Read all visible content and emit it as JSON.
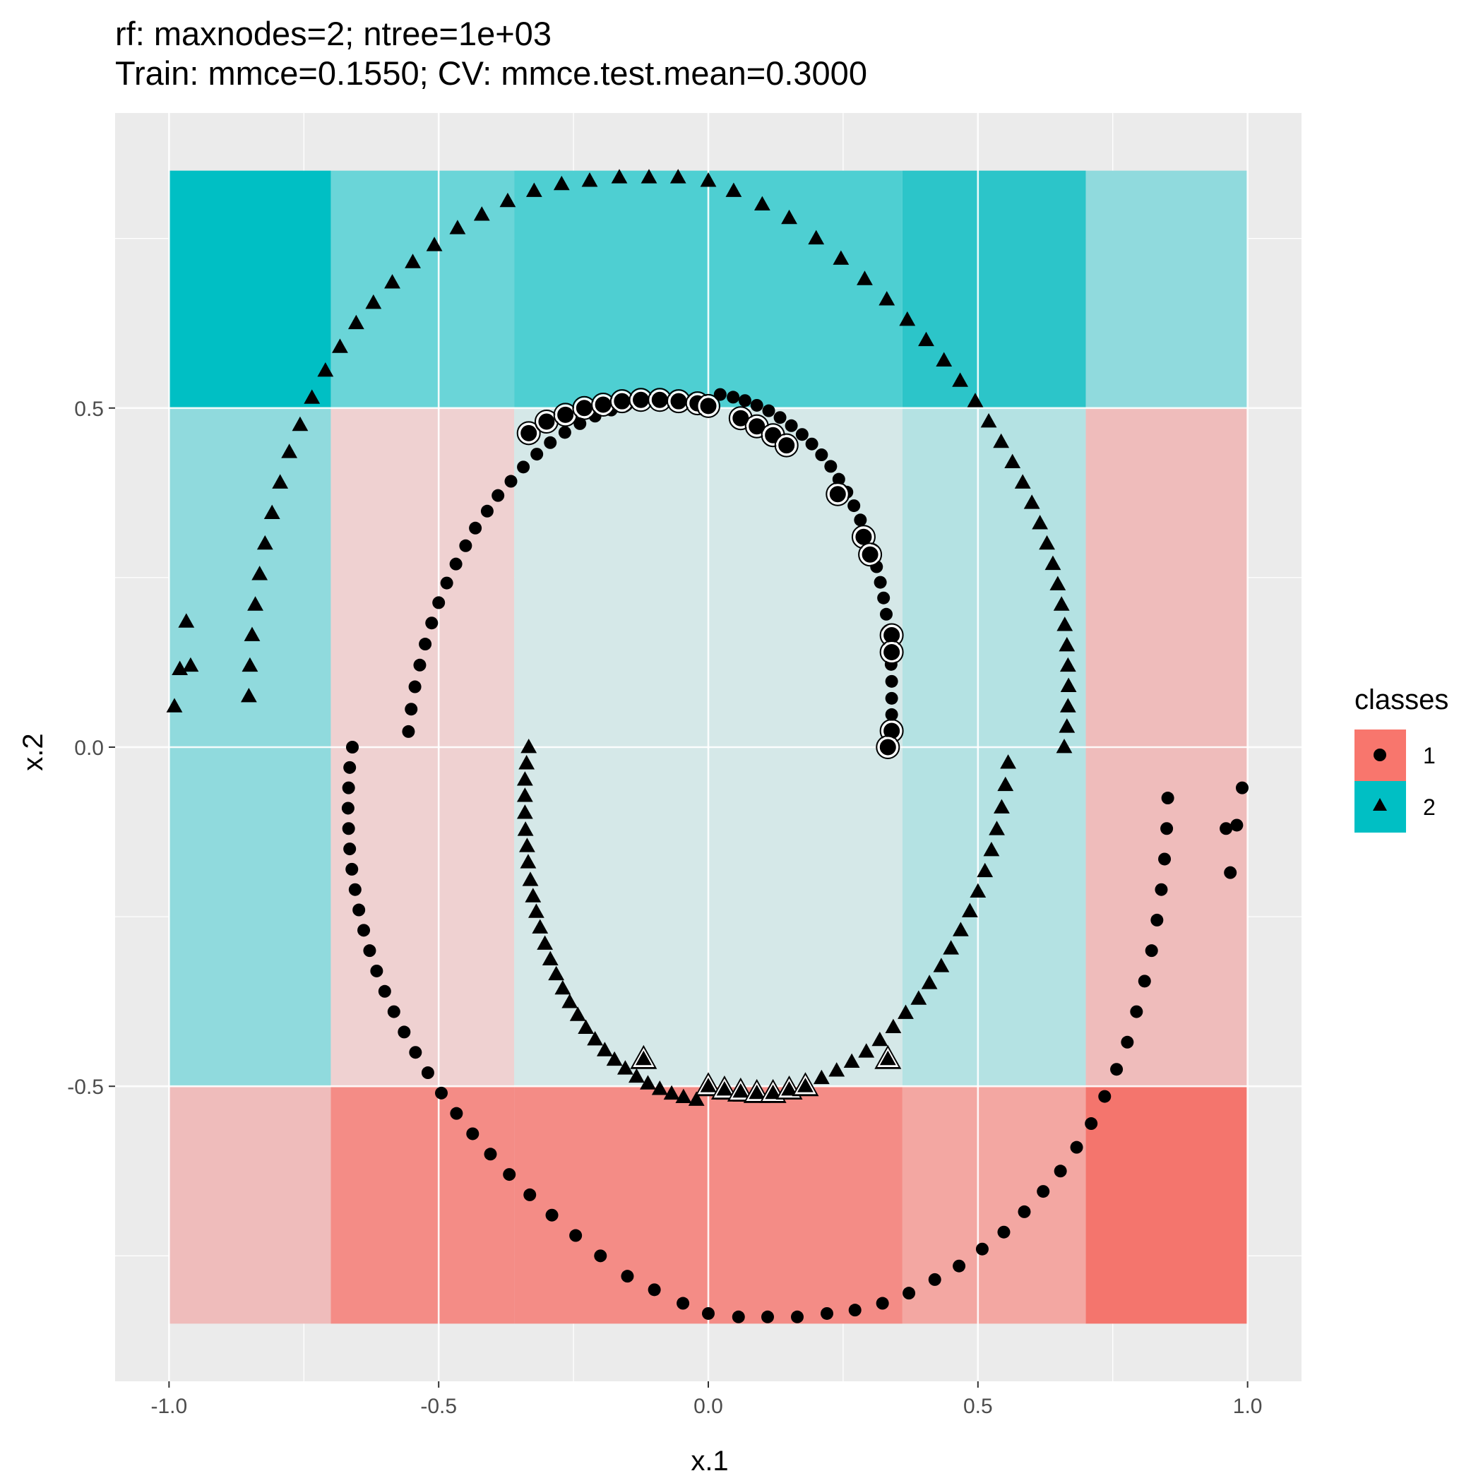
{
  "chart_data": {
    "type": "scatter",
    "title": "rf: maxnodes=2; ntree=1e+03",
    "subtitle": "Train: mmce=0.1550; CV: mmce.test.mean=0.3000",
    "xlabel": "x.1",
    "ylabel": "x.2",
    "xlim": [
      -1.1,
      1.1
    ],
    "ylim": [
      -0.935,
      0.935
    ],
    "x_ticks": [
      -1.0,
      -0.5,
      0.0,
      0.5,
      1.0
    ],
    "x_tick_labels": [
      "-1.0",
      "-0.5",
      "0.0",
      "0.5",
      "1.0"
    ],
    "y_ticks": [
      -0.5,
      0.0,
      0.5
    ],
    "y_tick_labels": [
      "-0.5",
      "0.0",
      "0.5"
    ],
    "grid": true,
    "legend": {
      "title": "classes",
      "position": "right",
      "entries": [
        {
          "label": "1",
          "color": "#F8766D",
          "shape": "circle"
        },
        {
          "label": "2",
          "color": "#00BFC4",
          "shape": "triangle"
        }
      ]
    },
    "background_regions": {
      "x_breaks": [
        -1.0,
        -0.7,
        -0.36,
        0.36,
        0.7,
        1.0
      ],
      "y_breaks": [
        -0.85,
        -0.5,
        0.5,
        0.85
      ],
      "rows_bottom_to_top": [
        [
          "#EFBCBB",
          "#F48C86",
          "#F48C86",
          "#F3A7A2",
          "#F4756D"
        ],
        [
          "#90DADD",
          "#EFD1D1",
          "#D5E8E8",
          "#B4E2E3",
          "#EFBCBB"
        ],
        [
          "#00BFC4",
          "#6AD5D8",
          "#4ECFD2",
          "#2CC5C9",
          "#90DADD"
        ]
      ]
    },
    "series": [
      {
        "name": "1",
        "marker": "circle",
        "color": "#000000",
        "points": [
          [
            0.333,
            0.0
          ],
          [
            0.337,
            0.024
          ],
          [
            0.34,
            0.048
          ],
          [
            0.34,
            0.072
          ],
          [
            0.34,
            0.097
          ],
          [
            0.339,
            0.122
          ],
          [
            0.336,
            0.146
          ],
          [
            0.334,
            0.17
          ],
          [
            0.33,
            0.196
          ],
          [
            0.325,
            0.22
          ],
          [
            0.319,
            0.243
          ],
          [
            0.312,
            0.266
          ],
          [
            0.303,
            0.29
          ],
          [
            0.293,
            0.313
          ],
          [
            0.282,
            0.335
          ],
          [
            0.27,
            0.356
          ],
          [
            0.257,
            0.376
          ],
          [
            0.242,
            0.395
          ],
          [
            0.227,
            0.414
          ],
          [
            0.21,
            0.431
          ],
          [
            0.192,
            0.447
          ],
          [
            0.174,
            0.461
          ],
          [
            0.154,
            0.474
          ],
          [
            0.133,
            0.486
          ],
          [
            0.112,
            0.496
          ],
          [
            0.09,
            0.504
          ],
          [
            0.068,
            0.511
          ],
          [
            0.046,
            0.516
          ],
          [
            0.022,
            0.52
          ],
          [
            0.0,
            0.503
          ],
          [
            -0.029,
            0.511
          ],
          [
            -0.06,
            0.514
          ],
          [
            -0.09,
            0.513
          ],
          [
            -0.12,
            0.51
          ],
          [
            -0.151,
            0.505
          ],
          [
            -0.18,
            0.497
          ],
          [
            -0.21,
            0.488
          ],
          [
            -0.238,
            0.477
          ],
          [
            -0.266,
            0.464
          ],
          [
            -0.293,
            0.449
          ],
          [
            -0.318,
            0.432
          ],
          [
            -0.343,
            0.413
          ],
          [
            -0.366,
            0.392
          ],
          [
            -0.39,
            0.371
          ],
          [
            -0.41,
            0.348
          ],
          [
            -0.432,
            0.323
          ],
          [
            -0.45,
            0.297
          ],
          [
            -0.468,
            0.27
          ],
          [
            -0.485,
            0.242
          ],
          [
            -0.5,
            0.213
          ],
          [
            -0.513,
            0.183
          ],
          [
            -0.525,
            0.152
          ],
          [
            -0.535,
            0.121
          ],
          [
            -0.544,
            0.089
          ],
          [
            -0.551,
            0.056
          ],
          [
            -0.556,
            0.023
          ],
          [
            -0.66,
            0.0
          ],
          [
            -0.665,
            -0.03
          ],
          [
            -0.667,
            -0.06
          ],
          [
            -0.668,
            -0.09
          ],
          [
            -0.667,
            -0.12
          ],
          [
            -0.665,
            -0.15
          ],
          [
            -0.661,
            -0.18
          ],
          [
            -0.655,
            -0.21
          ],
          [
            -0.648,
            -0.24
          ],
          [
            -0.639,
            -0.27
          ],
          [
            -0.628,
            -0.3
          ],
          [
            -0.615,
            -0.33
          ],
          [
            -0.6,
            -0.36
          ],
          [
            -0.583,
            -0.39
          ],
          [
            -0.564,
            -0.42
          ],
          [
            -0.543,
            -0.45
          ],
          [
            -0.52,
            -0.48
          ],
          [
            -0.495,
            -0.51
          ],
          [
            -0.467,
            -0.54
          ],
          [
            -0.437,
            -0.57
          ],
          [
            -0.404,
            -0.6
          ],
          [
            -0.369,
            -0.63
          ],
          [
            -0.331,
            -0.66
          ],
          [
            -0.29,
            -0.69
          ],
          [
            -0.246,
            -0.72
          ],
          [
            -0.2,
            -0.75
          ],
          [
            -0.15,
            -0.78
          ],
          [
            -0.1,
            -0.8
          ],
          [
            -0.047,
            -0.82
          ],
          [
            0.0,
            -0.835
          ],
          [
            0.056,
            -0.84
          ],
          [
            0.11,
            -0.84
          ],
          [
            0.165,
            -0.84
          ],
          [
            0.22,
            -0.835
          ],
          [
            0.272,
            -0.83
          ],
          [
            0.323,
            -0.82
          ],
          [
            0.372,
            -0.805
          ],
          [
            0.42,
            -0.785
          ],
          [
            0.465,
            -0.765
          ],
          [
            0.508,
            -0.74
          ],
          [
            0.548,
            -0.715
          ],
          [
            0.586,
            -0.685
          ],
          [
            0.621,
            -0.655
          ],
          [
            0.653,
            -0.625
          ],
          [
            0.683,
            -0.59
          ],
          [
            0.71,
            -0.555
          ],
          [
            0.735,
            -0.515
          ],
          [
            0.757,
            -0.475
          ],
          [
            0.777,
            -0.435
          ],
          [
            0.794,
            -0.39
          ],
          [
            0.809,
            -0.345
          ],
          [
            0.822,
            -0.3
          ],
          [
            0.832,
            -0.255
          ],
          [
            0.84,
            -0.21
          ],
          [
            0.846,
            -0.165
          ],
          [
            0.85,
            -0.12
          ],
          [
            0.852,
            -0.075
          ],
          [
            0.96,
            -0.12
          ],
          [
            0.968,
            -0.185
          ],
          [
            0.98,
            -0.115
          ],
          [
            0.99,
            -0.06
          ]
        ]
      },
      {
        "name": "2",
        "marker": "triangle",
        "color": "#000000",
        "points": [
          [
            -0.333,
            0.0
          ],
          [
            -0.337,
            -0.024
          ],
          [
            -0.34,
            -0.048
          ],
          [
            -0.34,
            -0.072
          ],
          [
            -0.34,
            -0.097
          ],
          [
            -0.339,
            -0.122
          ],
          [
            -0.336,
            -0.146
          ],
          [
            -0.334,
            -0.17
          ],
          [
            -0.33,
            -0.196
          ],
          [
            -0.325,
            -0.22
          ],
          [
            -0.319,
            -0.243
          ],
          [
            -0.312,
            -0.266
          ],
          [
            -0.303,
            -0.29
          ],
          [
            -0.293,
            -0.313
          ],
          [
            -0.282,
            -0.335
          ],
          [
            -0.27,
            -0.356
          ],
          [
            -0.257,
            -0.376
          ],
          [
            -0.242,
            -0.395
          ],
          [
            -0.227,
            -0.414
          ],
          [
            -0.21,
            -0.431
          ],
          [
            -0.192,
            -0.447
          ],
          [
            -0.174,
            -0.461
          ],
          [
            -0.154,
            -0.474
          ],
          [
            -0.133,
            -0.486
          ],
          [
            -0.112,
            -0.496
          ],
          [
            -0.09,
            -0.504
          ],
          [
            -0.068,
            -0.511
          ],
          [
            -0.046,
            -0.516
          ],
          [
            -0.022,
            -0.52
          ],
          [
            0.0,
            -0.503
          ],
          [
            0.029,
            -0.511
          ],
          [
            0.06,
            -0.514
          ],
          [
            0.09,
            -0.513
          ],
          [
            0.12,
            -0.51
          ],
          [
            0.151,
            -0.505
          ],
          [
            0.18,
            -0.497
          ],
          [
            0.21,
            -0.488
          ],
          [
            0.238,
            -0.477
          ],
          [
            0.266,
            -0.464
          ],
          [
            0.293,
            -0.449
          ],
          [
            0.318,
            -0.432
          ],
          [
            0.343,
            -0.413
          ],
          [
            0.366,
            -0.392
          ],
          [
            0.39,
            -0.371
          ],
          [
            0.41,
            -0.348
          ],
          [
            0.432,
            -0.323
          ],
          [
            0.45,
            -0.297
          ],
          [
            0.468,
            -0.27
          ],
          [
            0.485,
            -0.242
          ],
          [
            0.5,
            -0.213
          ],
          [
            0.513,
            -0.183
          ],
          [
            0.525,
            -0.152
          ],
          [
            0.535,
            -0.121
          ],
          [
            0.544,
            -0.089
          ],
          [
            0.551,
            -0.056
          ],
          [
            0.556,
            -0.023
          ],
          [
            0.66,
            0.0
          ],
          [
            0.665,
            0.03
          ],
          [
            0.667,
            0.06
          ],
          [
            0.668,
            0.09
          ],
          [
            0.667,
            0.12
          ],
          [
            0.665,
            0.15
          ],
          [
            0.661,
            0.18
          ],
          [
            0.655,
            0.21
          ],
          [
            0.648,
            0.24
          ],
          [
            0.639,
            0.27
          ],
          [
            0.628,
            0.3
          ],
          [
            0.615,
            0.33
          ],
          [
            0.6,
            0.36
          ],
          [
            0.583,
            0.39
          ],
          [
            0.564,
            0.42
          ],
          [
            0.543,
            0.45
          ],
          [
            0.52,
            0.48
          ],
          [
            0.495,
            0.51
          ],
          [
            0.467,
            0.54
          ],
          [
            0.437,
            0.57
          ],
          [
            0.404,
            0.6
          ],
          [
            0.369,
            0.63
          ],
          [
            0.331,
            0.66
          ],
          [
            0.29,
            0.69
          ],
          [
            0.246,
            0.72
          ],
          [
            0.2,
            0.75
          ],
          [
            0.15,
            0.78
          ],
          [
            0.1,
            0.8
          ],
          [
            0.047,
            0.82
          ],
          [
            0.0,
            0.835
          ],
          [
            -0.056,
            0.84
          ],
          [
            -0.11,
            0.84
          ],
          [
            -0.165,
            0.84
          ],
          [
            -0.22,
            0.835
          ],
          [
            -0.272,
            0.83
          ],
          [
            -0.323,
            0.82
          ],
          [
            -0.372,
            0.805
          ],
          [
            -0.42,
            0.785
          ],
          [
            -0.465,
            0.765
          ],
          [
            -0.508,
            0.74
          ],
          [
            -0.548,
            0.715
          ],
          [
            -0.586,
            0.685
          ],
          [
            -0.621,
            0.655
          ],
          [
            -0.653,
            0.625
          ],
          [
            -0.683,
            0.59
          ],
          [
            -0.71,
            0.555
          ],
          [
            -0.735,
            0.515
          ],
          [
            -0.757,
            0.475
          ],
          [
            -0.777,
            0.435
          ],
          [
            -0.794,
            0.39
          ],
          [
            -0.809,
            0.345
          ],
          [
            -0.822,
            0.3
          ],
          [
            -0.832,
            0.255
          ],
          [
            -0.84,
            0.21
          ],
          [
            -0.846,
            0.165
          ],
          [
            -0.85,
            0.12
          ],
          [
            -0.852,
            0.075
          ],
          [
            -0.96,
            0.12
          ],
          [
            -0.968,
            0.185
          ],
          [
            -0.98,
            0.115
          ],
          [
            -0.99,
            0.06
          ]
        ]
      }
    ],
    "highlighted_points": {
      "class_1": [
        [
          -0.333,
          0.463
        ],
        [
          -0.3,
          0.48
        ],
        [
          -0.265,
          0.49
        ],
        [
          -0.23,
          0.5
        ],
        [
          -0.195,
          0.505
        ],
        [
          -0.16,
          0.51
        ],
        [
          -0.125,
          0.512
        ],
        [
          -0.09,
          0.512
        ],
        [
          -0.055,
          0.51
        ],
        [
          -0.02,
          0.507
        ],
        [
          0.0,
          0.503
        ],
        [
          0.06,
          0.485
        ],
        [
          0.09,
          0.473
        ],
        [
          0.12,
          0.46
        ],
        [
          0.145,
          0.445
        ],
        [
          0.24,
          0.373
        ],
        [
          0.288,
          0.31
        ],
        [
          0.3,
          0.284
        ],
        [
          0.34,
          0.165
        ],
        [
          0.34,
          0.14
        ],
        [
          0.34,
          0.024
        ],
        [
          0.333,
          0.0
        ]
      ],
      "class_2": [
        [
          -0.12,
          -0.46
        ],
        [
          0.0,
          -0.5
        ],
        [
          0.03,
          -0.505
        ],
        [
          0.06,
          -0.508
        ],
        [
          0.09,
          -0.51
        ],
        [
          0.12,
          -0.51
        ],
        [
          0.15,
          -0.505
        ],
        [
          0.18,
          -0.5
        ],
        [
          0.333,
          -0.46
        ]
      ]
    }
  }
}
